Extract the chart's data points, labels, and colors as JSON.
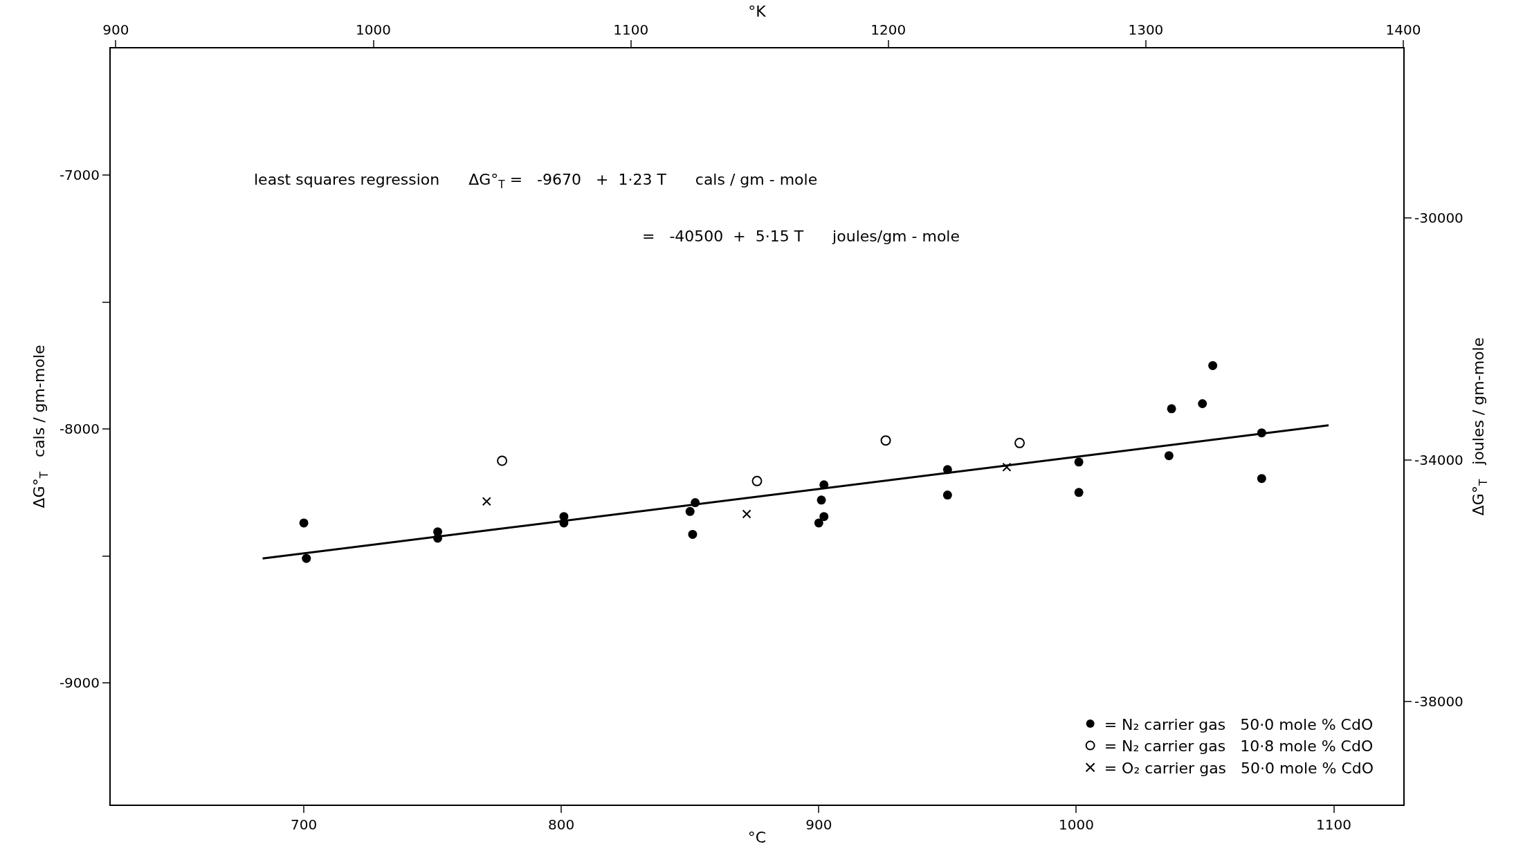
{
  "chart_data": {
    "type": "scatter",
    "xlabel": "°C",
    "x2label": "°K",
    "ylabel": "ΔG°$_{T}$   cals / gm-mole",
    "y2label": "ΔG°$_{T}$   joules / gm-mole",
    "xlim": [
      625,
      1127
    ],
    "xticks": [
      700,
      800,
      900,
      1000,
      1100
    ],
    "x2lim": [
      898,
      1400
    ],
    "x2ticks": [
      900,
      1000,
      1100,
      1200,
      1300,
      1400
    ],
    "ylim": [
      -9480,
      -6500
    ],
    "yticks": [
      -7000,
      {
        "value": -7500,
        "label": null
      },
      -8000,
      {
        "value": -8500,
        "label": null
      },
      -9000
    ],
    "y2lim": [
      -39700,
      -27200
    ],
    "y2ticks": [
      -30000,
      -34000,
      -38000
    ],
    "legend": "bottom right",
    "series": [
      {
        "name": "= N₂ carrier gas   50·0 mole % CdO",
        "color": "#000000",
        "marker": "circle",
        "x": [
          700,
          701,
          752,
          752,
          801,
          801,
          852,
          850,
          851,
          902,
          901,
          902,
          900,
          950,
          950,
          1001,
          1001,
          1037,
          1036,
          1049,
          1053,
          1072,
          1072
        ],
        "values": [
          -8370,
          -8510,
          -8405,
          -8430,
          -8345,
          -8370,
          -8290,
          -8325,
          -8415,
          -8220,
          -8280,
          -8345,
          -8370,
          -8160,
          -8260,
          -8130,
          -8250,
          -7920,
          -8105,
          -7900,
          -7750,
          -8015,
          -8195
        ]
      },
      {
        "name": "= N₂ carrier gas   10·8 mole % CdO",
        "color": "#ffffff",
        "marker": "circle",
        "x": [
          777,
          876,
          926,
          978
        ],
        "values": [
          -8125,
          -8205,
          -8045,
          -8055
        ]
      },
      {
        "name": "= O₂ carrier gas   50·0 mole % CdO",
        "color": "#000000",
        "marker": "cross",
        "x": [
          771,
          872,
          973
        ],
        "values": [
          -8285,
          -8335,
          -8150
        ]
      },
      {
        "type": "line",
        "color": "#000000",
        "line_style": "solid",
        "marker": "none",
        "x": [
          684,
          1098
        ],
        "values": [
          -8510,
          -7985
        ]
      }
    ],
    "annotations": [
      "least squares regression      ΔG°$_{T}$ =   -9670   +  1·23 T      cals / gm - mole",
      "=   -40500  +  5·15 T      joules/gm - mole"
    ]
  }
}
